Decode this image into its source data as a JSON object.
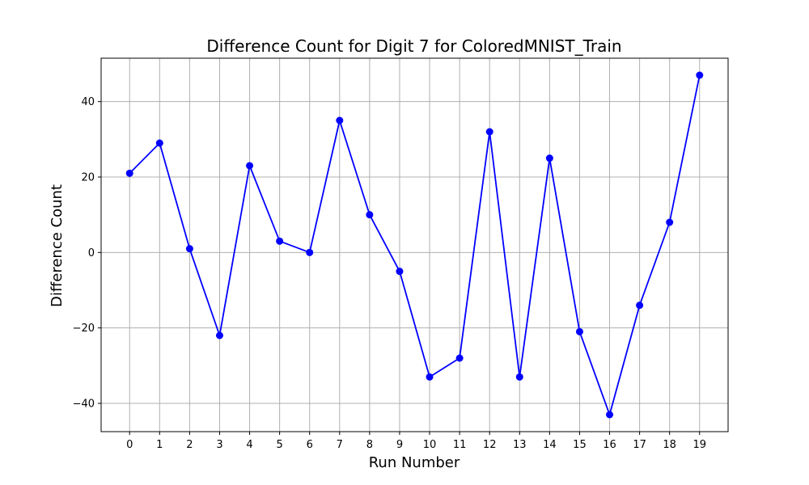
{
  "chart_data": {
    "type": "line",
    "title": "Difference Count for Digit 7 for ColoredMNIST_Train",
    "xlabel": "Run Number",
    "ylabel": "Difference Count",
    "x": [
      0,
      1,
      2,
      3,
      4,
      5,
      6,
      7,
      8,
      9,
      10,
      11,
      12,
      13,
      14,
      15,
      16,
      17,
      18,
      19
    ],
    "series": [
      {
        "values": [
          21,
          29,
          1,
          -22,
          23,
          3,
          0,
          35,
          10,
          -5,
          -33,
          -28,
          32,
          -33,
          25,
          -21,
          -43,
          -14,
          8,
          47
        ],
        "color": "#0000ff",
        "marker": "circle"
      }
    ],
    "xticks": [
      "0",
      "1",
      "2",
      "3",
      "4",
      "5",
      "6",
      "7",
      "8",
      "9",
      "10",
      "11",
      "12",
      "13",
      "14",
      "15",
      "16",
      "17",
      "18",
      "19"
    ],
    "yticks": [
      -40,
      -20,
      0,
      20,
      40
    ],
    "ytick_labels": [
      "−40",
      "−20",
      "0",
      "20",
      "40"
    ],
    "xlim": [
      -0.95,
      19.95
    ],
    "ylim": [
      -47.5,
      51.5
    ],
    "grid": true,
    "grid_color": "#b0b0b0",
    "legend": false
  }
}
